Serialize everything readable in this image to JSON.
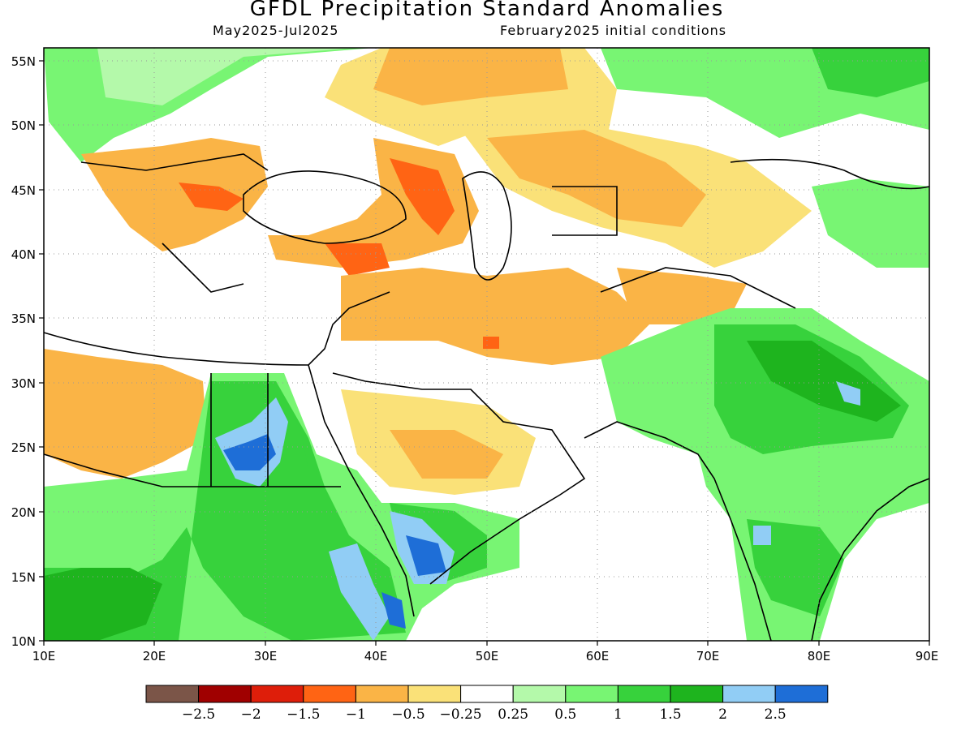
{
  "header": {
    "title": "GFDL Precipitation Standard Anomalies",
    "period": "May2025-Jul2025",
    "initial_conditions": "February2025 initial conditions"
  },
  "map": {
    "lon_range": [
      10,
      90
    ],
    "lat_range": [
      10,
      56
    ],
    "x_ticks": [
      "10E",
      "20E",
      "30E",
      "40E",
      "50E",
      "60E",
      "70E",
      "80E",
      "90E"
    ],
    "y_ticks": [
      "10N",
      "15N",
      "20N",
      "25N",
      "30N",
      "35N",
      "40N",
      "45N",
      "50N",
      "55N"
    ],
    "grid": true,
    "anomaly_regions": [
      {
        "name": "east-africa-south-arabia-wet",
        "category": "1.5"
      },
      {
        "name": "sudan-egypt-wet",
        "category": "1"
      },
      {
        "name": "india-wet",
        "category": "1.5"
      },
      {
        "name": "himalaya-wet",
        "category": "2"
      },
      {
        "name": "russia-kazakhstan-wet",
        "category": "0.5"
      },
      {
        "name": "north-africa-dry",
        "category": "-0.5"
      },
      {
        "name": "caucasus-dry",
        "category": "-1.5"
      },
      {
        "name": "iran-dry",
        "category": "-0.5"
      },
      {
        "name": "balkans-dry",
        "category": "-1"
      },
      {
        "name": "central-asia-dry",
        "category": "-0.5"
      }
    ]
  },
  "colorbar": {
    "colors": [
      "#7b5548",
      "#a00000",
      "#de1e0a",
      "#ff6414",
      "#fab446",
      "#fae178",
      "#ffffff",
      "#b4f9aa",
      "#78f573",
      "#37d23c",
      "#1eb41e",
      "#91cdf5",
      "#1e6ed7"
    ],
    "labels": [
      "−2.5",
      "−2",
      "−1.5",
      "−1",
      "−0.5",
      "−0.25",
      "0.25",
      "0.5",
      "1",
      "1.5",
      "2",
      "2.5"
    ]
  }
}
